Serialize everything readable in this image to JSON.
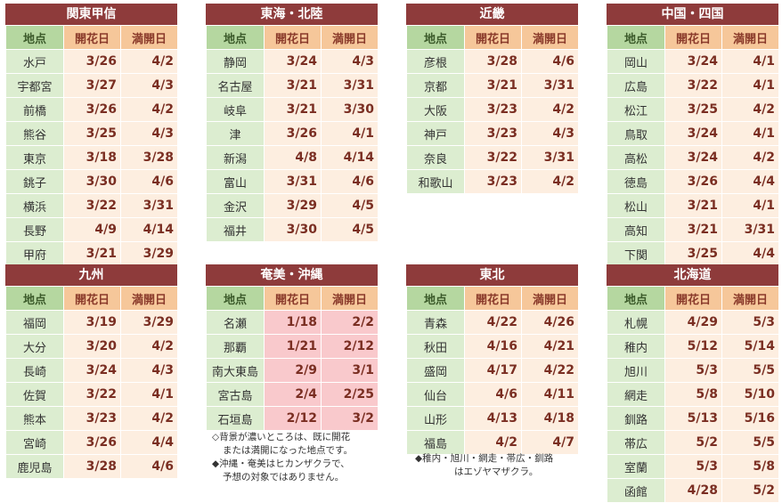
{
  "headers": {
    "location": "地点",
    "bloom": "開花日",
    "full": "満開日"
  },
  "regions": [
    {
      "name": "関東甲信",
      "rows": [
        {
          "loc": "水戸",
          "bloom": "3/26",
          "full": "4/2"
        },
        {
          "loc": "宇都宮",
          "bloom": "3/27",
          "full": "4/3"
        },
        {
          "loc": "前橋",
          "bloom": "3/26",
          "full": "4/2"
        },
        {
          "loc": "熊谷",
          "bloom": "3/25",
          "full": "4/3"
        },
        {
          "loc": "東京",
          "bloom": "3/18",
          "full": "3/28"
        },
        {
          "loc": "銚子",
          "bloom": "3/30",
          "full": "4/6"
        },
        {
          "loc": "横浜",
          "bloom": "3/22",
          "full": "3/31"
        },
        {
          "loc": "長野",
          "bloom": "4/9",
          "full": "4/14"
        },
        {
          "loc": "甲府",
          "bloom": "3/21",
          "full": "3/29"
        }
      ]
    },
    {
      "name": "東海・北陸",
      "rows": [
        {
          "loc": "静岡",
          "bloom": "3/24",
          "full": "4/3"
        },
        {
          "loc": "名古屋",
          "bloom": "3/21",
          "full": "3/31"
        },
        {
          "loc": "岐阜",
          "bloom": "3/21",
          "full": "3/30"
        },
        {
          "loc": "津",
          "bloom": "3/26",
          "full": "4/1"
        },
        {
          "loc": "新潟",
          "bloom": "4/8",
          "full": "4/14"
        },
        {
          "loc": "富山",
          "bloom": "3/31",
          "full": "4/6"
        },
        {
          "loc": "金沢",
          "bloom": "3/29",
          "full": "4/5"
        },
        {
          "loc": "福井",
          "bloom": "3/30",
          "full": "4/5"
        }
      ]
    },
    {
      "name": "近畿",
      "rows": [
        {
          "loc": "彦根",
          "bloom": "3/28",
          "full": "4/6"
        },
        {
          "loc": "京都",
          "bloom": "3/21",
          "full": "3/31"
        },
        {
          "loc": "大阪",
          "bloom": "3/23",
          "full": "4/2"
        },
        {
          "loc": "神戸",
          "bloom": "3/23",
          "full": "4/3"
        },
        {
          "loc": "奈良",
          "bloom": "3/22",
          "full": "3/31"
        },
        {
          "loc": "和歌山",
          "bloom": "3/23",
          "full": "4/2"
        }
      ]
    },
    {
      "name": "中国・四国",
      "rows": [
        {
          "loc": "岡山",
          "bloom": "3/24",
          "full": "4/1"
        },
        {
          "loc": "広島",
          "bloom": "3/22",
          "full": "4/1"
        },
        {
          "loc": "松江",
          "bloom": "3/25",
          "full": "4/2"
        },
        {
          "loc": "鳥取",
          "bloom": "3/24",
          "full": "4/1"
        },
        {
          "loc": "高松",
          "bloom": "3/24",
          "full": "4/2"
        },
        {
          "loc": "徳島",
          "bloom": "3/26",
          "full": "4/4"
        },
        {
          "loc": "松山",
          "bloom": "3/21",
          "full": "4/1"
        },
        {
          "loc": "高知",
          "bloom": "3/21",
          "full": "3/31"
        },
        {
          "loc": "下関",
          "bloom": "3/25",
          "full": "4/4"
        }
      ]
    },
    {
      "name": "九州",
      "rows": [
        {
          "loc": "福岡",
          "bloom": "3/19",
          "full": "3/29"
        },
        {
          "loc": "大分",
          "bloom": "3/20",
          "full": "4/2"
        },
        {
          "loc": "長崎",
          "bloom": "3/24",
          "full": "4/3"
        },
        {
          "loc": "佐賀",
          "bloom": "3/22",
          "full": "4/1"
        },
        {
          "loc": "熊本",
          "bloom": "3/23",
          "full": "4/2"
        },
        {
          "loc": "宮崎",
          "bloom": "3/26",
          "full": "4/4"
        },
        {
          "loc": "鹿児島",
          "bloom": "3/28",
          "full": "4/6"
        }
      ]
    },
    {
      "name": "奄美・沖縄",
      "rows": [
        {
          "loc": "名瀬",
          "bloom": "1/18",
          "full": "2/2",
          "hl": true
        },
        {
          "loc": "那覇",
          "bloom": "1/21",
          "full": "2/12",
          "hl": true
        },
        {
          "loc": "南大東島",
          "bloom": "2/9",
          "full": "3/1",
          "hl": true
        },
        {
          "loc": "宮古島",
          "bloom": "2/4",
          "full": "2/25",
          "hl": true
        },
        {
          "loc": "石垣島",
          "bloom": "2/12",
          "full": "3/2",
          "hl": true
        }
      ]
    },
    {
      "name": "東北",
      "rows": [
        {
          "loc": "青森",
          "bloom": "4/22",
          "full": "4/26"
        },
        {
          "loc": "秋田",
          "bloom": "4/16",
          "full": "4/21"
        },
        {
          "loc": "盛岡",
          "bloom": "4/17",
          "full": "4/22"
        },
        {
          "loc": "仙台",
          "bloom": "4/6",
          "full": "4/11"
        },
        {
          "loc": "山形",
          "bloom": "4/13",
          "full": "4/18"
        },
        {
          "loc": "福島",
          "bloom": "4/2",
          "full": "4/7"
        }
      ]
    },
    {
      "name": "北海道",
      "rows": [
        {
          "loc": "札幌",
          "bloom": "4/29",
          "full": "5/3"
        },
        {
          "loc": "稚内",
          "bloom": "5/12",
          "full": "5/14"
        },
        {
          "loc": "旭川",
          "bloom": "5/3",
          "full": "5/5"
        },
        {
          "loc": "網走",
          "bloom": "5/8",
          "full": "5/10"
        },
        {
          "loc": "釧路",
          "bloom": "5/13",
          "full": "5/16"
        },
        {
          "loc": "帯広",
          "bloom": "5/2",
          "full": "5/5"
        },
        {
          "loc": "室蘭",
          "bloom": "5/3",
          "full": "5/8"
        },
        {
          "loc": "函館",
          "bloom": "4/28",
          "full": "5/2"
        }
      ]
    }
  ],
  "notes": {
    "okinawa_note_1a": "◇背景が濃いところは、既に開花",
    "okinawa_note_1b": "または満開になった地点です。",
    "okinawa_note_2a": "◆沖縄・奄美はヒカンザクラで、",
    "okinawa_note_2b": "予想の対象ではありません。",
    "tohoku_note_a": "◆稚内・旭川・網走・帯広・釧路",
    "tohoku_note_b": "はエゾヤマザクラ。"
  }
}
